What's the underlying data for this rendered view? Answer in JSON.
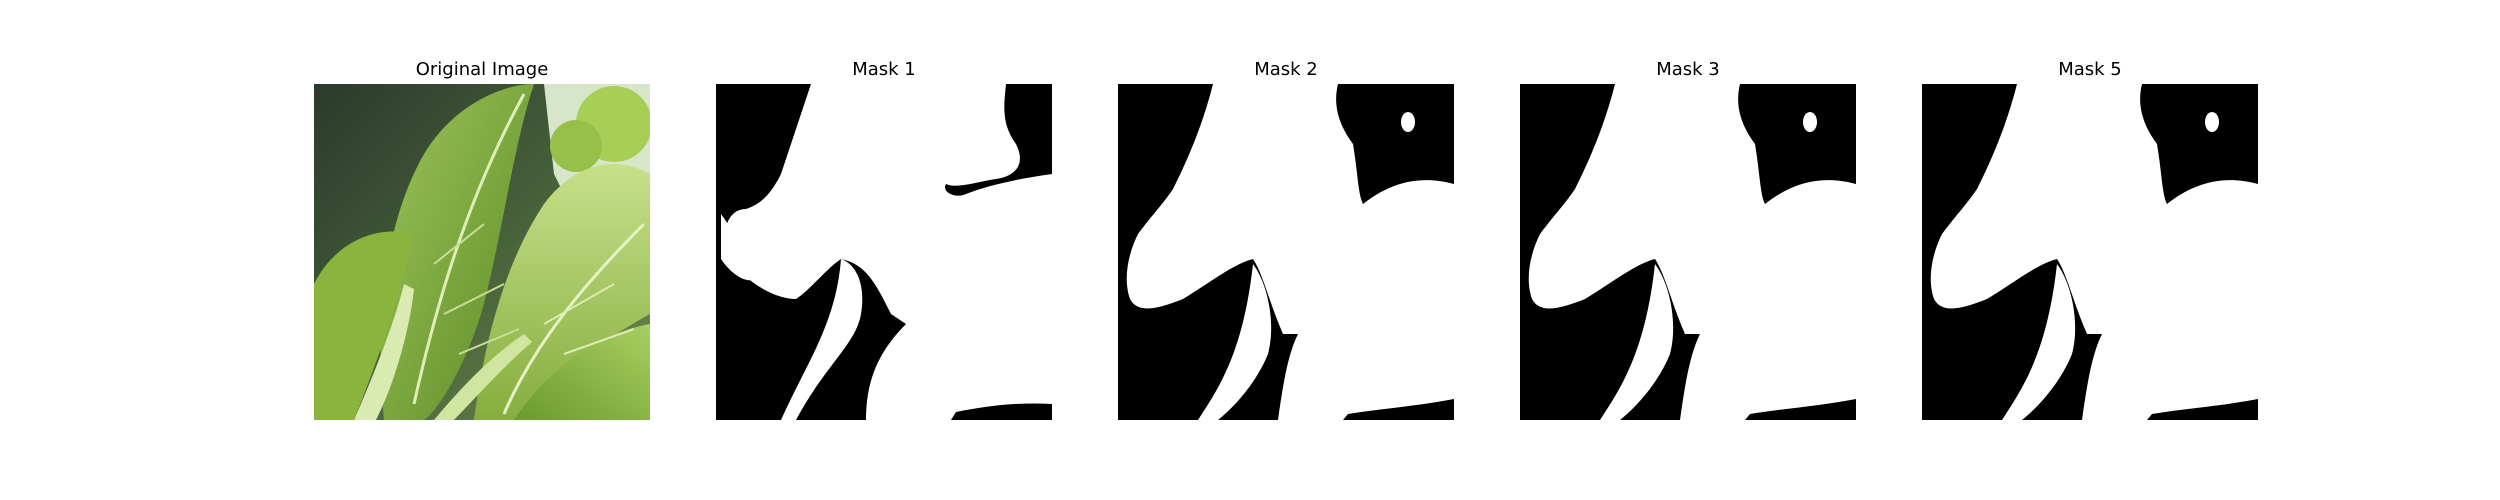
{
  "figure": {
    "panels": [
      {
        "id": "original",
        "title": "Original Image",
        "kind": "photo"
      },
      {
        "id": "mask1",
        "title": "Mask 1",
        "kind": "mask"
      },
      {
        "id": "mask2",
        "title": "Mask 2",
        "kind": "mask"
      },
      {
        "id": "mask3",
        "title": "Mask 3",
        "kind": "mask"
      },
      {
        "id": "mask5",
        "title": "Mask 5",
        "kind": "mask"
      }
    ],
    "colors": {
      "background": "#ffffff",
      "mask_foreground": "#ffffff",
      "mask_background": "#000000",
      "leaf_light": "#b9d77a",
      "leaf_mid": "#8fb445",
      "leaf_dark": "#4f7a1f",
      "shadow": "#2d3b24"
    }
  }
}
